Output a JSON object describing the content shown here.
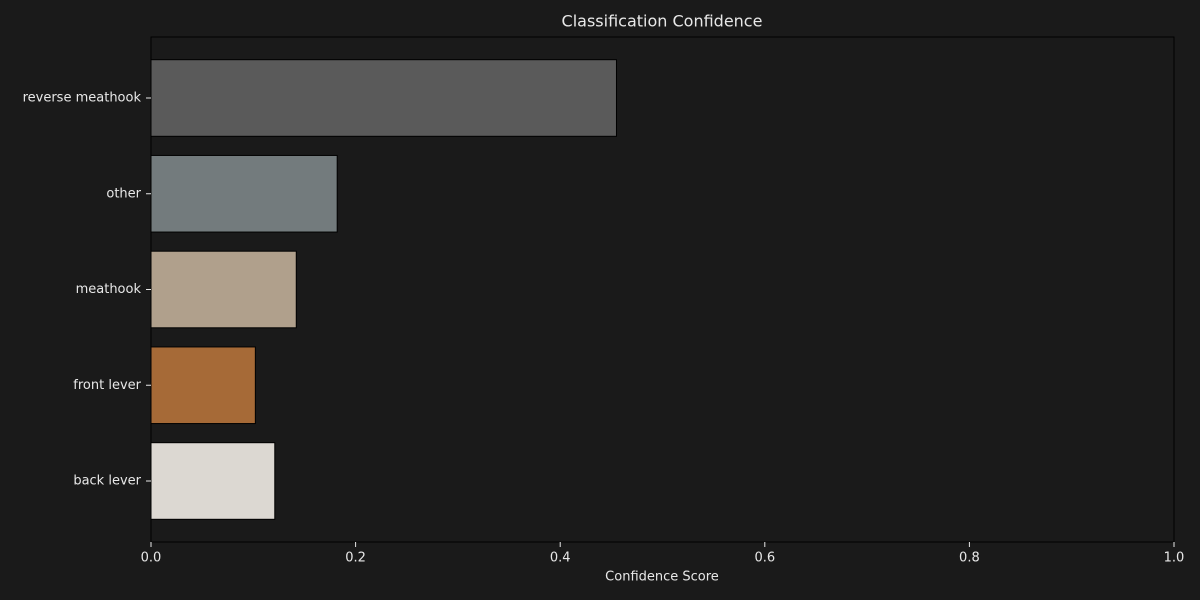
{
  "chart_data": {
    "type": "barh",
    "title": "Classification Confidence",
    "x_label": "Confidence Score",
    "categories": [
      "reverse meathook",
      "other",
      "meathook",
      "front lever",
      "back lever"
    ],
    "values": [
      0.455,
      0.182,
      0.142,
      0.102,
      0.121
    ],
    "colors": [
      "#5a5a5a",
      "#737b7d",
      "#b0a08c",
      "#a66a37",
      "#dcd8d2"
    ],
    "xlim": [
      0,
      1
    ],
    "xticks": [
      {
        "value": 0,
        "label": "0.0"
      },
      {
        "value": 0.2,
        "label": "0.2"
      },
      {
        "value": 0.4,
        "label": "0.4"
      },
      {
        "value": 0.6,
        "label": "0.6"
      },
      {
        "value": 0.8,
        "label": "0.8"
      },
      {
        "value": 1,
        "label": "1.0"
      }
    ],
    "grid": false
  }
}
